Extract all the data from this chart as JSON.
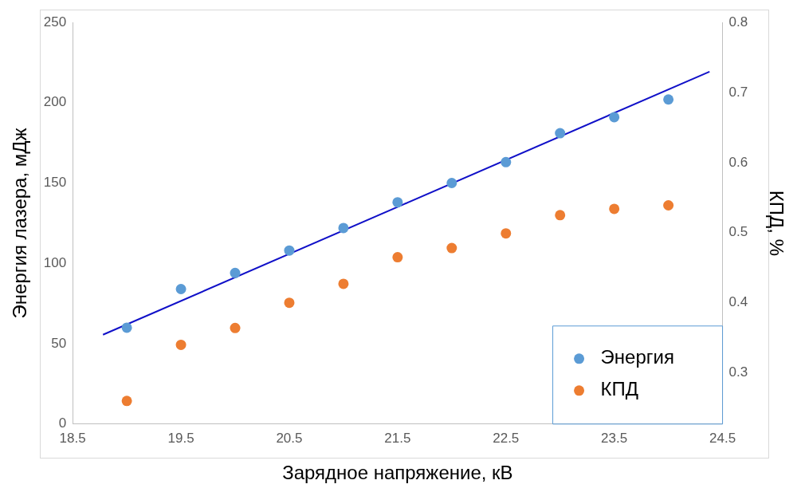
{
  "chart_data": {
    "type": "scatter",
    "xlabel": "Зарядное напряжение, кВ",
    "ylabel": "Энергия лазера, мДж",
    "y2label": "КПД, %",
    "x": [
      19,
      19.5,
      20,
      20.5,
      21,
      21.5,
      22,
      22.5,
      23,
      23.5,
      24
    ],
    "series": [
      {
        "name": "Энергия",
        "color": "#5b9bd5",
        "values": [
          60,
          84,
          94,
          108,
          122,
          138,
          150,
          163,
          181,
          191,
          202
        ]
      },
      {
        "name": "КПД",
        "color": "#ed7d31",
        "axis": "y2",
        "values": [
          0.26,
          0.34,
          0.364,
          0.4,
          0.427,
          0.465,
          0.478,
          0.499,
          0.525,
          0.534,
          0.539
        ]
      },
      {
        "type": "line",
        "marker": "none",
        "color": "#1010c8",
        "x": [
          18.78,
          24.38
        ],
        "values": [
          55.6,
          219.3
        ]
      }
    ],
    "xlim": [
      18.5,
      24.5
    ],
    "xticks": [
      18.5,
      19.5,
      20.5,
      21.5,
      22.5,
      23.5,
      24.5
    ],
    "ylim": [
      0,
      250
    ],
    "yticks": [
      0,
      50,
      100,
      150,
      200,
      250
    ],
    "y2lim": [
      0.227,
      0.8
    ],
    "y2ticks": [
      0.3,
      0.4,
      0.5,
      0.6,
      0.7,
      0.8
    ],
    "grid": false,
    "legend": "bottom right",
    "marker": "circle"
  }
}
